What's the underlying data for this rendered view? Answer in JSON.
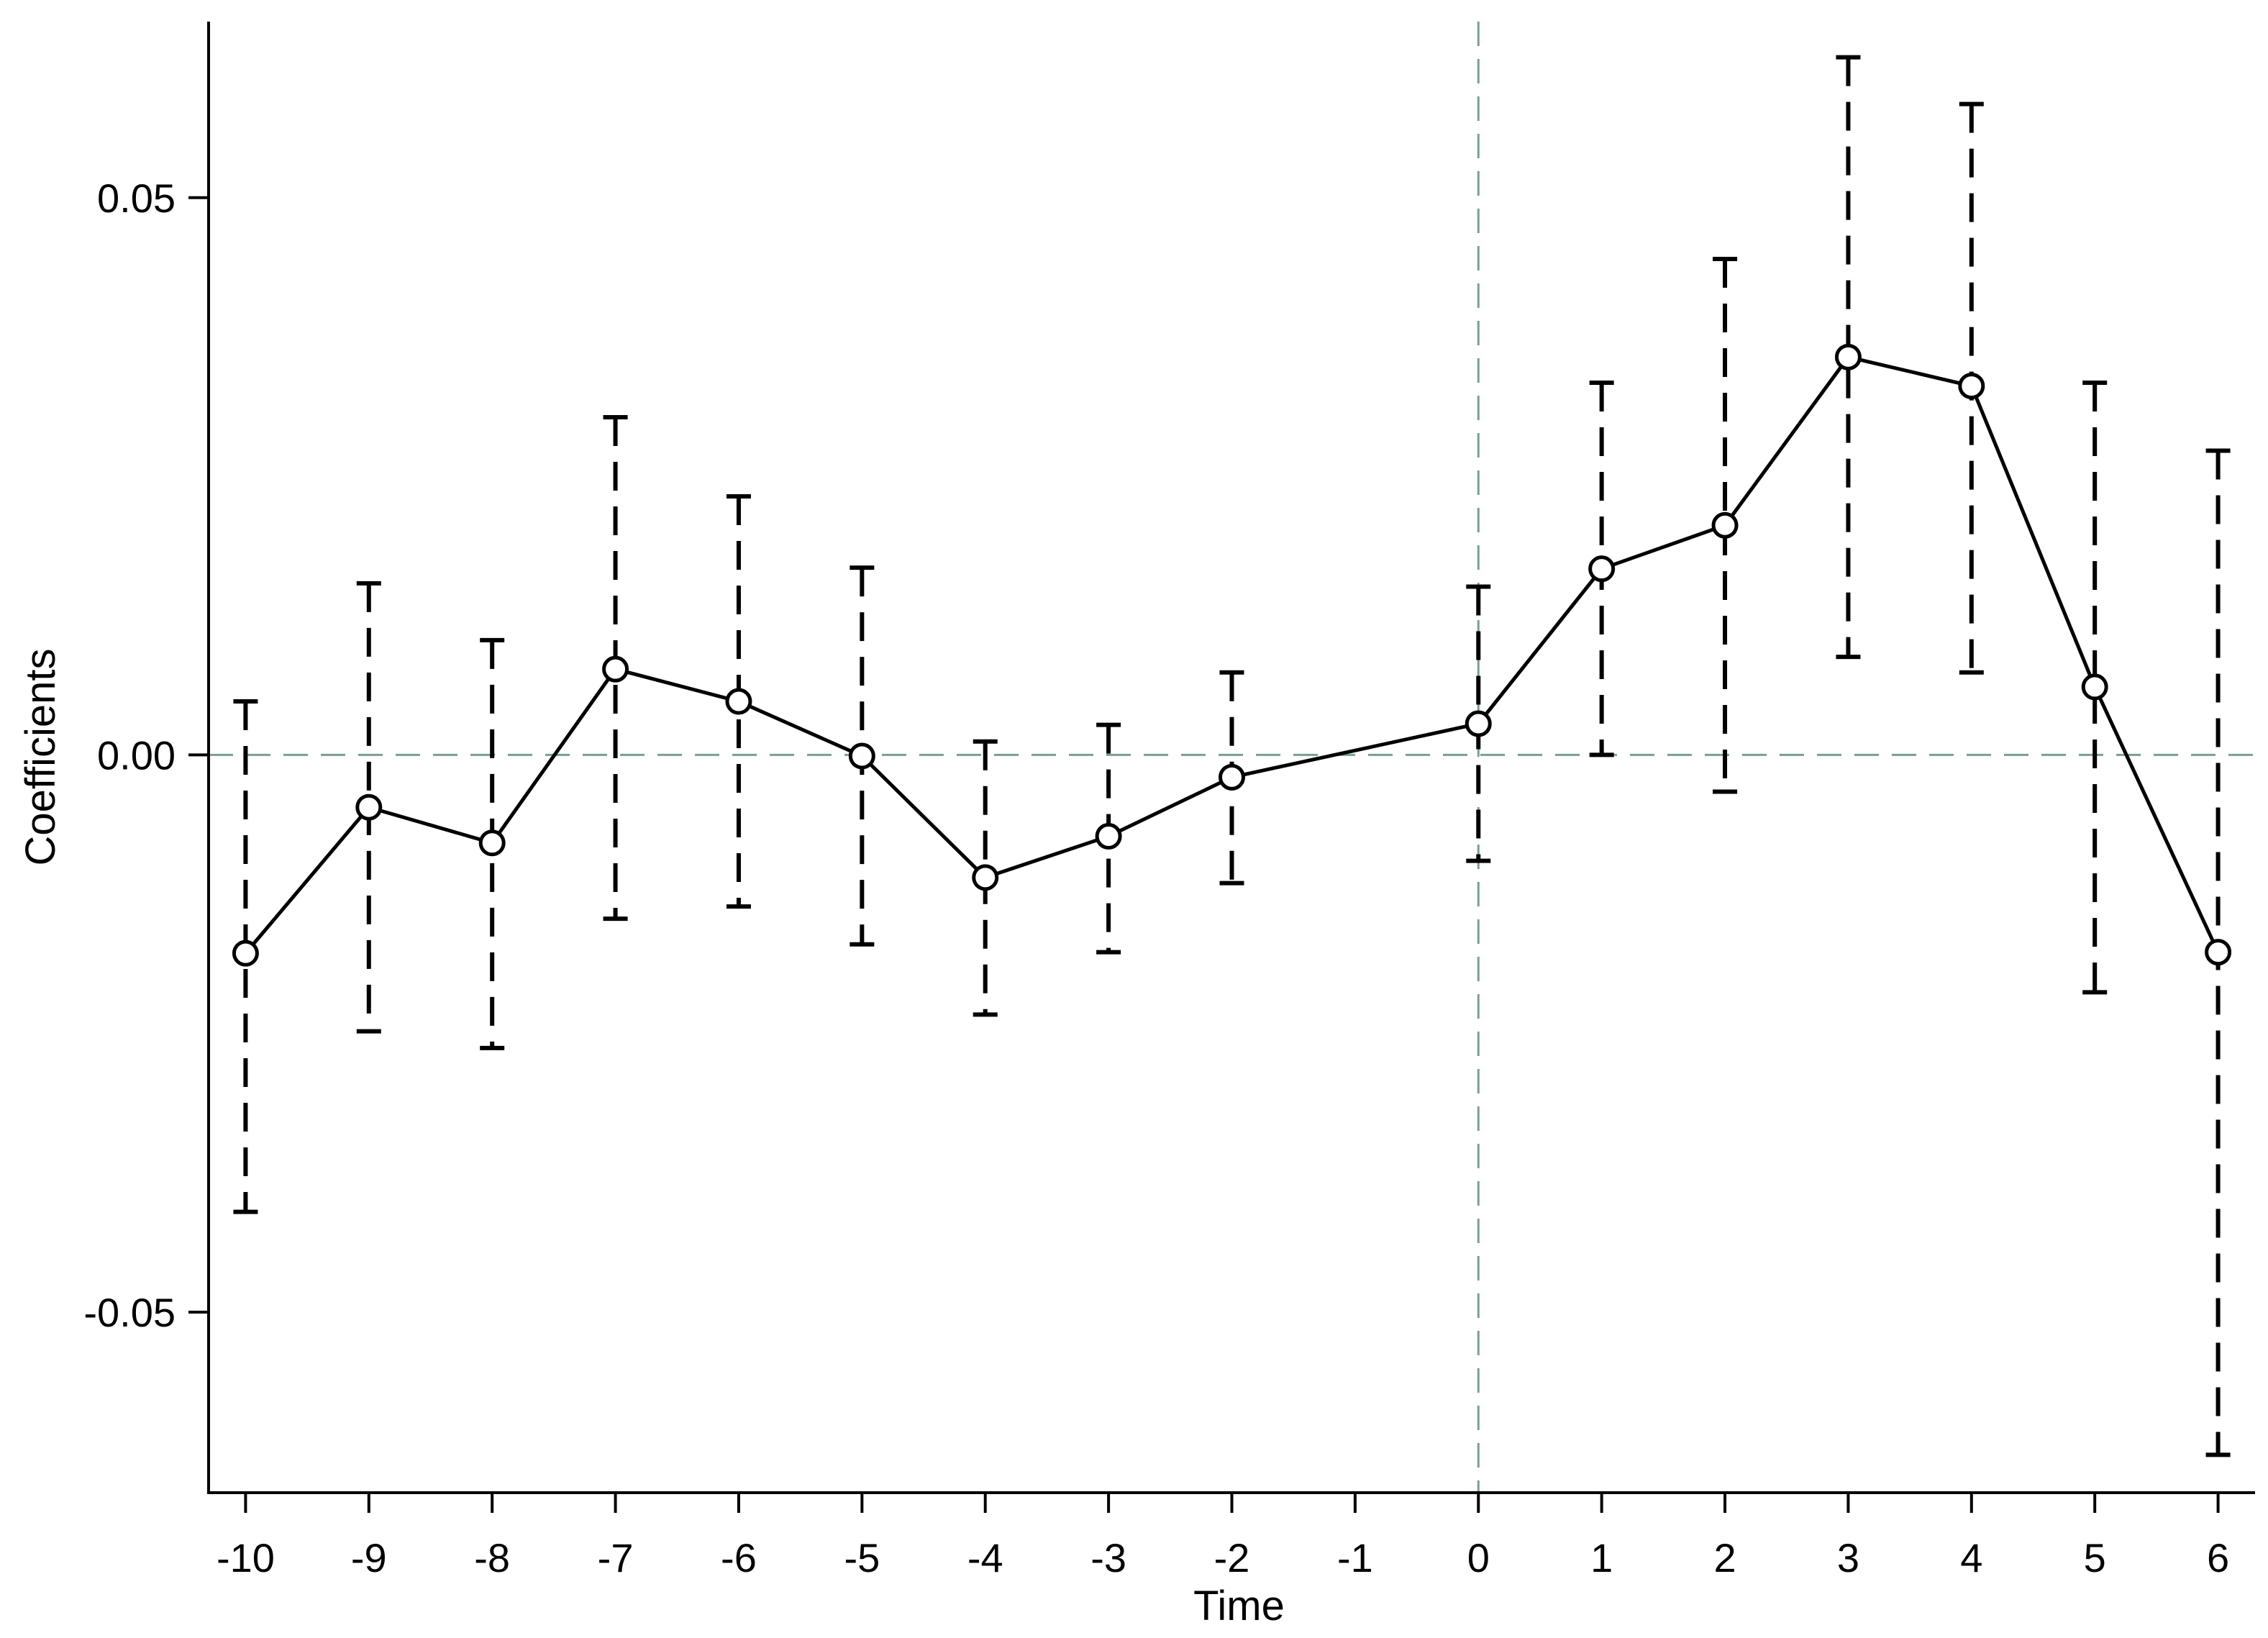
{
  "chart_data": {
    "type": "line",
    "xlabel": "Time",
    "ylabel": "Coefficients",
    "x": [
      -10,
      -9,
      -8,
      -7,
      -6,
      -5,
      -4,
      -3,
      -2,
      0,
      1,
      2,
      3,
      4,
      5,
      6
    ],
    "series": [
      {
        "values": [
          -0.0178,
          -0.0047,
          -0.0079,
          0.0077,
          0.0048,
          -0.0001,
          -0.011,
          -0.0073,
          -0.002,
          0.0028,
          0.0167,
          0.0206,
          0.0357,
          0.0331,
          0.0061,
          -0.0177
        ],
        "ci_low": [
          -0.041,
          -0.0248,
          -0.0263,
          -0.0147,
          -0.0136,
          -0.017,
          -0.0233,
          -0.0177,
          -0.0115,
          -0.0095,
          0.0,
          -0.0033,
          0.0088,
          0.0074,
          -0.0213,
          -0.0628
        ],
        "ci_high": [
          0.0048,
          0.0154,
          0.0103,
          0.0303,
          0.0232,
          0.0168,
          0.0012,
          0.0027,
          0.0074,
          0.0151,
          0.0334,
          0.0445,
          0.0626,
          0.0584,
          0.0334,
          0.0273
        ]
      }
    ],
    "xlim": [
      -10.3,
      6.3
    ],
    "ylim": [
      -0.0662,
      0.0658
    ],
    "xticks": [
      -10,
      -9,
      -8,
      -7,
      -6,
      -5,
      -4,
      -3,
      -2,
      -1,
      0,
      1,
      2,
      3,
      4,
      5,
      6
    ],
    "xtick_labels": [
      "-10",
      "-9",
      "-8",
      "-7",
      "-6",
      "-5",
      "-4",
      "-3",
      "-2",
      "-1",
      "0",
      "1",
      "2",
      "3",
      "4",
      "5",
      "6"
    ],
    "yticks": [
      0.05,
      0.0,
      -0.05
    ],
    "ytick_labels": [
      "0.05",
      "0.00",
      "-0.05"
    ],
    "reference_lines": {
      "x": 0,
      "y": 0
    },
    "grid": false,
    "colors": {
      "line": "#000000",
      "reference": "#7a9e92"
    }
  }
}
